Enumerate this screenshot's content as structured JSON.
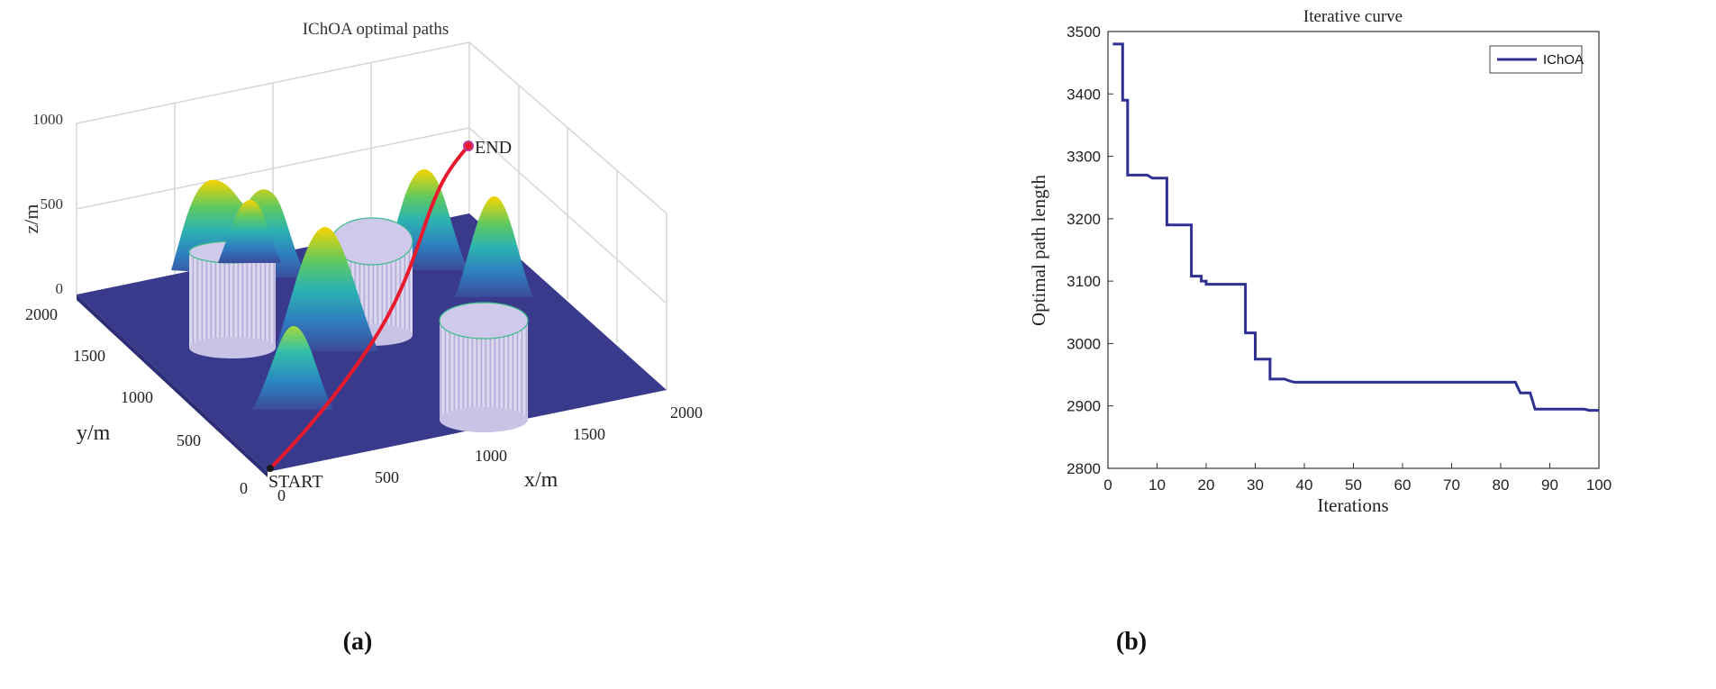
{
  "figure": {
    "panel_a_label": "(a)",
    "panel_b_label": "(b)"
  },
  "chart_data": [
    {
      "type": "surface3d",
      "title": "IChOA optimal paths",
      "xlabel": "x/m",
      "ylabel": "y/m",
      "zlabel": "z/m",
      "x_ticks": [
        "0",
        "500",
        "1000",
        "1500",
        "2000"
      ],
      "y_ticks": [
        "0",
        "500",
        "1000",
        "1500",
        "2000"
      ],
      "z_ticks": [
        "0",
        "500",
        "1000"
      ],
      "xlim": [
        0,
        2000
      ],
      "ylim": [
        0,
        2000
      ],
      "zlim": [
        0,
        1000
      ],
      "start_label": "START",
      "end_label": "END",
      "colors": {
        "floor": "#3a3a8c",
        "path": "#e8192c",
        "cylinder": "#c9c4e6",
        "peak": "#f5d400"
      }
    },
    {
      "type": "line",
      "title": "Iterative curve",
      "xlabel": "Iterations",
      "ylabel": "Optimal path length",
      "xlim": [
        0,
        100
      ],
      "ylim": [
        2800,
        3500
      ],
      "x_ticks": [
        0,
        10,
        20,
        30,
        40,
        50,
        60,
        70,
        80,
        90,
        100
      ],
      "y_ticks": [
        2800,
        2900,
        3000,
        3100,
        3200,
        3300,
        3400,
        3500
      ],
      "legend_position": "top-right",
      "series": [
        {
          "name": "IChOA",
          "color": "#2e3192",
          "x": [
            1,
            3,
            3,
            4,
            4,
            8,
            9,
            11,
            11,
            12,
            12,
            16,
            16,
            17,
            17,
            19,
            19,
            20,
            20,
            27,
            27,
            28,
            28,
            30,
            30,
            31,
            31,
            33,
            33,
            34,
            36,
            37,
            38,
            83,
            84,
            86,
            87,
            97,
            98,
            100
          ],
          "y": [
            3480,
            3480,
            3390,
            3390,
            3270,
            3270,
            3265,
            3265,
            3265,
            3265,
            3190,
            3190,
            3190,
            3190,
            3108,
            3108,
            3100,
            3100,
            3095,
            3095,
            3095,
            3095,
            3017,
            3017,
            2975,
            2975,
            2975,
            2975,
            2943,
            2943,
            2943,
            2940,
            2938,
            2938,
            2921,
            2921,
            2895,
            2895,
            2893,
            2893
          ]
        }
      ]
    }
  ]
}
